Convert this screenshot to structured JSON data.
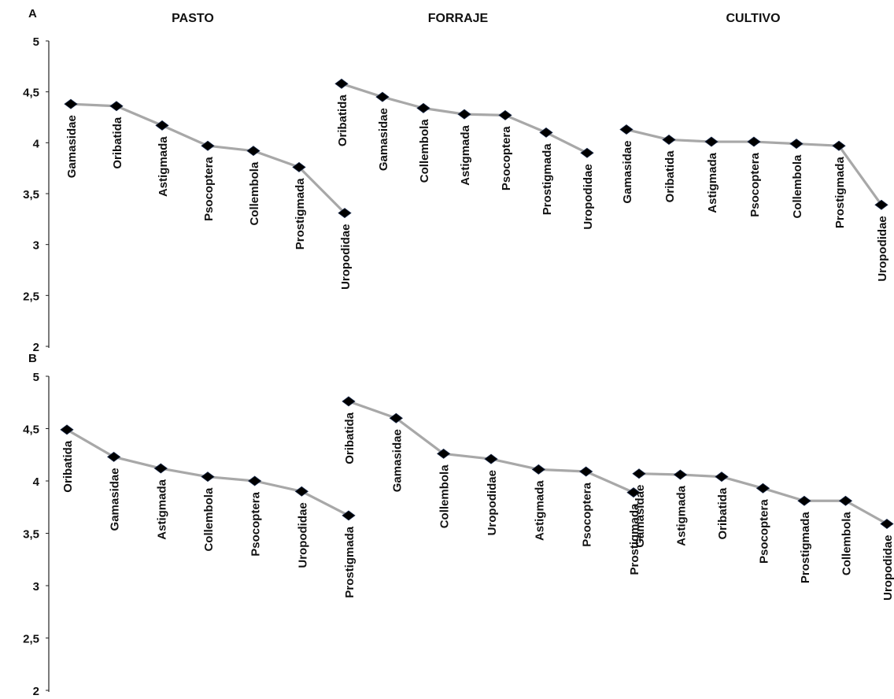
{
  "colors": {
    "line": "#a8a8a8",
    "marker": "#000000",
    "axis": "#222222",
    "text": "#111111"
  },
  "chart_data": [
    {
      "type": "line",
      "panel_label": "A",
      "ylim": [
        2,
        5
      ],
      "yticks": [
        "2",
        "2,5",
        "3",
        "3,5",
        "4",
        "4,5",
        "5"
      ],
      "groups": [
        {
          "title": "PASTO",
          "categories": [
            "Gamasidae",
            "Oribatida",
            "Astigmada",
            "Psocoptera",
            "Collembola",
            "Prostigmada",
            "Uropodidae"
          ],
          "values": [
            4.38,
            4.36,
            4.17,
            3.97,
            3.92,
            3.76,
            3.31
          ]
        },
        {
          "title": "FORRAJE",
          "categories": [
            "Oribatida",
            "Gamasidae",
            "Collembola",
            "Astigmada",
            "Psocoptera",
            "Prostigmada",
            "Uropodidae"
          ],
          "values": [
            4.58,
            4.45,
            4.34,
            4.28,
            4.27,
            4.1,
            3.9
          ]
        },
        {
          "title": "CULTIVO",
          "categories": [
            "Gamasidae",
            "Oribatida",
            "Astigmada",
            "Psocoptera",
            "Collembola",
            "Prostigmada",
            "Uropodidae"
          ],
          "values": [
            4.13,
            4.03,
            4.01,
            4.01,
            3.99,
            3.97,
            3.39
          ]
        }
      ]
    },
    {
      "type": "line",
      "panel_label": "B",
      "ylim": [
        2,
        5
      ],
      "yticks": [
        "2",
        "2,5",
        "3",
        "3,5",
        "4",
        "4,5",
        "5"
      ],
      "groups": [
        {
          "title": "",
          "categories": [
            "Oribatida",
            "Gamasidae",
            "Astigmada",
            "Collembola",
            "Psocoptera",
            "Uropodidae",
            "Prostigmada"
          ],
          "values": [
            4.49,
            4.23,
            4.12,
            4.04,
            4.0,
            3.9,
            3.67
          ]
        },
        {
          "title": "",
          "categories": [
            "Oribatida",
            "Gamasidae",
            "Collembola",
            "Uropodidae",
            "Astigmada",
            "Psocoptera",
            "Prostigmada"
          ],
          "values": [
            4.76,
            4.6,
            4.26,
            4.21,
            4.11,
            4.09,
            3.89
          ]
        },
        {
          "title": "",
          "categories": [
            "Gamasidae",
            "Astigmada",
            "Oribatida",
            "Psocoptera",
            "Prostigmada",
            "Collembola",
            "Uropodidae"
          ],
          "values": [
            4.07,
            4.06,
            4.04,
            3.93,
            3.81,
            3.81,
            3.59
          ]
        }
      ]
    }
  ]
}
